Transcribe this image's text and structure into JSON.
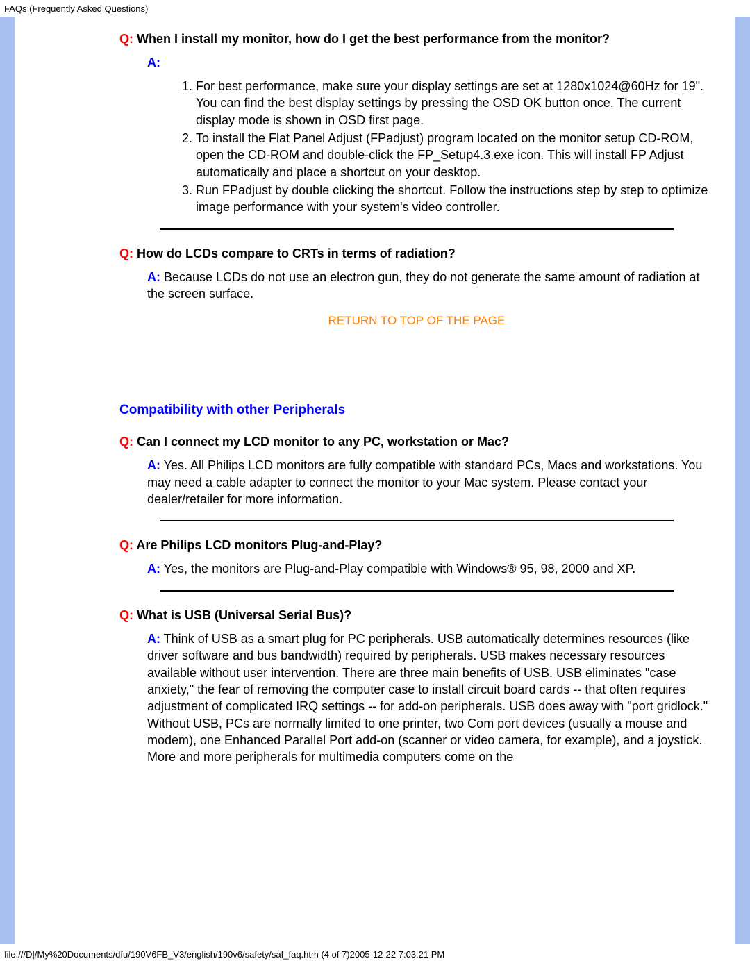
{
  "header": {
    "title": "FAQs (Frequently Asked Questions)"
  },
  "colors": {
    "frame_background": "#a8c0f0",
    "page_background": "#ffffff",
    "q_prefix": "#ff0000",
    "a_prefix": "#0000ff",
    "section_title": "#0000ff",
    "return_link": "#ff8000",
    "text": "#000000",
    "hr": "#000000"
  },
  "faq1": {
    "q_prefix": "Q:",
    "q_text": " When I install my monitor, how do I get the best performance from the monitor?",
    "a_prefix": "A:",
    "items": {
      "i1": "For best performance, make sure your display settings are set at 1280x1024@60Hz for 19\". You can find the best display settings by pressing the OSD OK button once. The current display mode is shown in OSD first page.",
      "i2": "To install the Flat Panel Adjust (FPadjust) program located on the monitor setup CD-ROM, open the CD-ROM and double-click the FP_Setup4.3.exe icon. This will install FP Adjust automatically and place a shortcut on your desktop.",
      "i3": "Run FPadjust by double clicking the shortcut. Follow the instructions step by step to optimize image performance with your system's video controller."
    }
  },
  "faq2": {
    "q_prefix": "Q:",
    "q_text": " How do LCDs compare to CRTs in terms of radiation?",
    "a_prefix": "A:",
    "a_text": " Because LCDs do not use an electron gun, they do not generate the same amount of radiation at the screen surface."
  },
  "return_link_text": "RETURN TO TOP OF THE PAGE",
  "section2": {
    "title": "Compatibility with other Peripherals"
  },
  "faq3": {
    "q_prefix": "Q:",
    "q_text": " Can I connect my LCD monitor to any PC, workstation or Mac?",
    "a_prefix": "A:",
    "a_text": " Yes. All Philips LCD monitors are fully compatible with standard PCs, Macs and workstations. You may need a cable adapter to connect the monitor to your Mac system. Please contact your dealer/retailer for more information."
  },
  "faq4": {
    "q_prefix": "Q:",
    "q_text": " Are Philips LCD monitors Plug-and-Play?",
    "a_prefix": "A:",
    "a_text": " Yes, the monitors are Plug-and-Play compatible with Windows® 95, 98, 2000 and XP."
  },
  "faq5": {
    "q_prefix": "Q:",
    "q_text": " What is USB (Universal Serial Bus)?",
    "a_prefix": "A:",
    "a_text": " Think of USB as a smart plug for PC peripherals. USB automatically determines resources (like driver software and bus bandwidth) required by peripherals. USB makes necessary resources available without user intervention. There are three main benefits of USB. USB eliminates \"case anxiety,\" the fear of removing the computer case to install circuit board cards -- that often requires adjustment of complicated IRQ settings -- for add-on peripherals. USB does away with \"port gridlock.\" Without USB, PCs are normally limited to one printer, two Com port devices (usually a mouse and modem), one Enhanced Parallel Port add-on (scanner or video camera, for example), and a joystick. More and more peripherals for multimedia computers come on the"
  },
  "footer": {
    "text": "file:///D|/My%20Documents/dfu/190V6FB_V3/english/190v6/safety/saf_faq.htm (4 of 7)2005-12-22 7:03:21 PM"
  }
}
